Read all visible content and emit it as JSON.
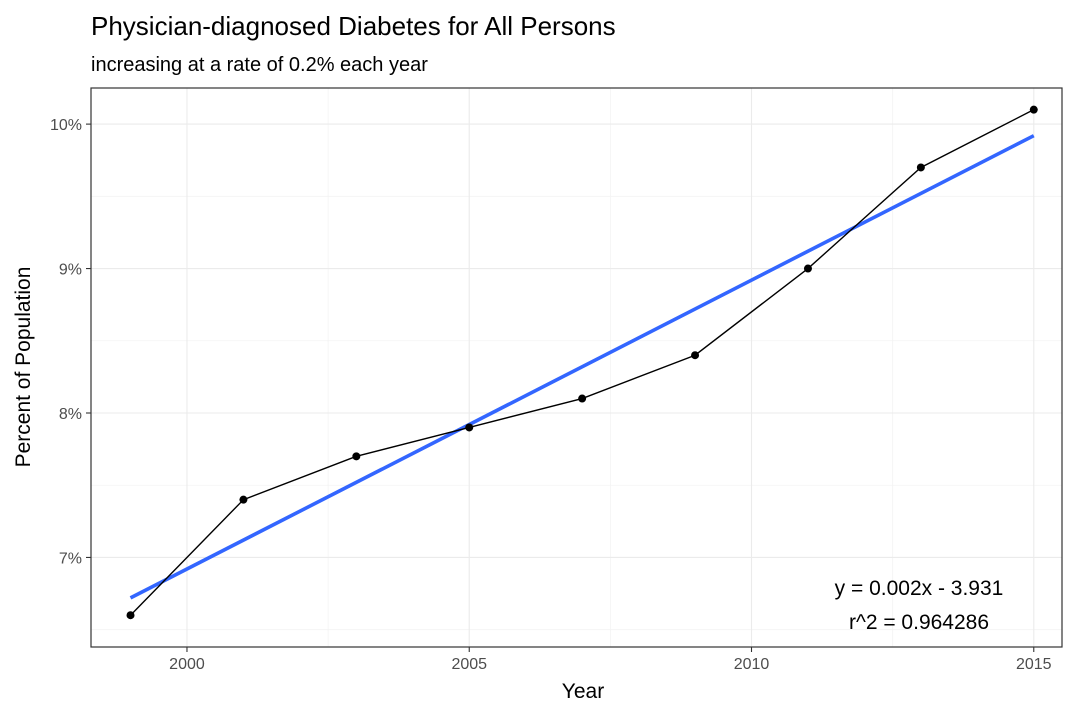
{
  "chart_data": {
    "type": "line",
    "title": "Physician-diagnosed Diabetes for All Persons",
    "subtitle": "increasing at a rate of 0.2% each year",
    "xlabel": "Year",
    "ylabel": "Percent of Population",
    "xlim": [
      1998.3,
      2015.5
    ],
    "ylim": [
      6.38,
      10.25
    ],
    "x_ticks": [
      2000,
      2005,
      2010,
      2015
    ],
    "x_minor_ticks": [
      2002.5,
      2007.5,
      2012.5
    ],
    "y_ticks": [
      7,
      8,
      9,
      10
    ],
    "y_tick_labels": [
      "7%",
      "8%",
      "9%",
      "10%"
    ],
    "y_minor_ticks": [
      6.5,
      7.5,
      8.5,
      9.5
    ],
    "grid": true,
    "series": [
      {
        "kind": "observed",
        "color": "#000000",
        "x": [
          1999,
          2001,
          2003,
          2005,
          2007,
          2009,
          2011,
          2013,
          2015
        ],
        "y": [
          6.6,
          7.4,
          7.7,
          7.9,
          8.1,
          8.4,
          9.0,
          9.7,
          10.1
        ]
      },
      {
        "kind": "linear-fit",
        "color": "#3366ff",
        "x": [
          1999,
          2015
        ],
        "y": [
          6.72,
          9.92
        ]
      }
    ],
    "annotations": [
      "y = 0.002x - 3.931",
      "r^2 = 0.964286"
    ]
  }
}
